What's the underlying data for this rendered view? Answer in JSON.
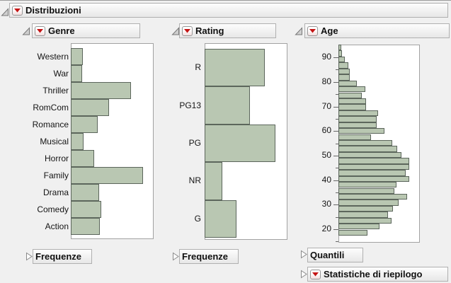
{
  "app": {
    "title": "Distribuzioni"
  },
  "colors": {
    "background": "#f0f0f0",
    "bar_fill": "#b9c7b2",
    "bar_border": "#5c665c",
    "accent_red": "#c41414",
    "plot_background": "#ffffff",
    "plot_border": "#a2a2a2"
  },
  "panels": [
    {
      "title": "Genre",
      "disclosure": "open",
      "has_menu": true
    },
    {
      "title": "Rating",
      "disclosure": "open",
      "has_menu": true
    },
    {
      "title": "Age",
      "disclosure": "open",
      "has_menu": true
    }
  ],
  "footer": [
    {
      "label": "Frequenze",
      "disclosure": "collapsed",
      "has_menu": false
    },
    {
      "label": "Frequenze",
      "disclosure": "collapsed",
      "has_menu": false
    },
    {
      "label": "Quantili",
      "disclosure": "collapsed",
      "has_menu": false
    },
    {
      "label": "Statistiche di riepilogo",
      "disclosure": "collapsed",
      "has_menu": true
    }
  ],
  "chart_data": [
    {
      "type": "bar",
      "orientation": "horizontal",
      "title": "Genre",
      "categories": [
        "Western",
        "War",
        "Thriller",
        "RomCom",
        "Romance",
        "Musical",
        "Horror",
        "Family",
        "Drama",
        "Comedy",
        "Action"
      ],
      "values": [
        17,
        16,
        85,
        54,
        38,
        18,
        33,
        102,
        40,
        43,
        41
      ],
      "value_units": "estimated relative frequency (bar length px, no value axis shown)",
      "grid": false,
      "legend": false
    },
    {
      "type": "bar",
      "orientation": "horizontal",
      "title": "Rating",
      "categories": [
        "R",
        "PG13",
        "PG",
        "NR",
        "G"
      ],
      "values": [
        85,
        64,
        100,
        25,
        45
      ],
      "value_units": "estimated relative frequency (bar length px, no value axis shown)",
      "grid": false,
      "legend": false
    },
    {
      "type": "histogram",
      "orientation": "horizontal",
      "title": "Age",
      "ylabel": "",
      "axis_tick_labels": [
        90,
        80,
        70,
        60,
        50,
        40,
        30,
        20
      ],
      "minor_ticks": [
        95,
        85,
        75,
        65,
        55,
        45,
        35,
        25,
        15
      ],
      "axis_range_bottom_to_top": [
        14.5,
        96
      ],
      "bin_width_years": 2.5,
      "values_top_to_bottom": [
        4,
        5,
        9,
        14,
        16,
        16,
        26,
        38,
        33,
        39,
        39,
        56,
        54,
        54,
        65,
        46,
        76,
        83,
        89,
        100,
        100,
        95,
        100,
        82,
        79,
        97,
        85,
        77,
        70,
        75,
        58,
        41
      ],
      "value_units": "estimated relative frequency (bar length px, no value axis shown)",
      "grid": false,
      "legend": false
    }
  ]
}
